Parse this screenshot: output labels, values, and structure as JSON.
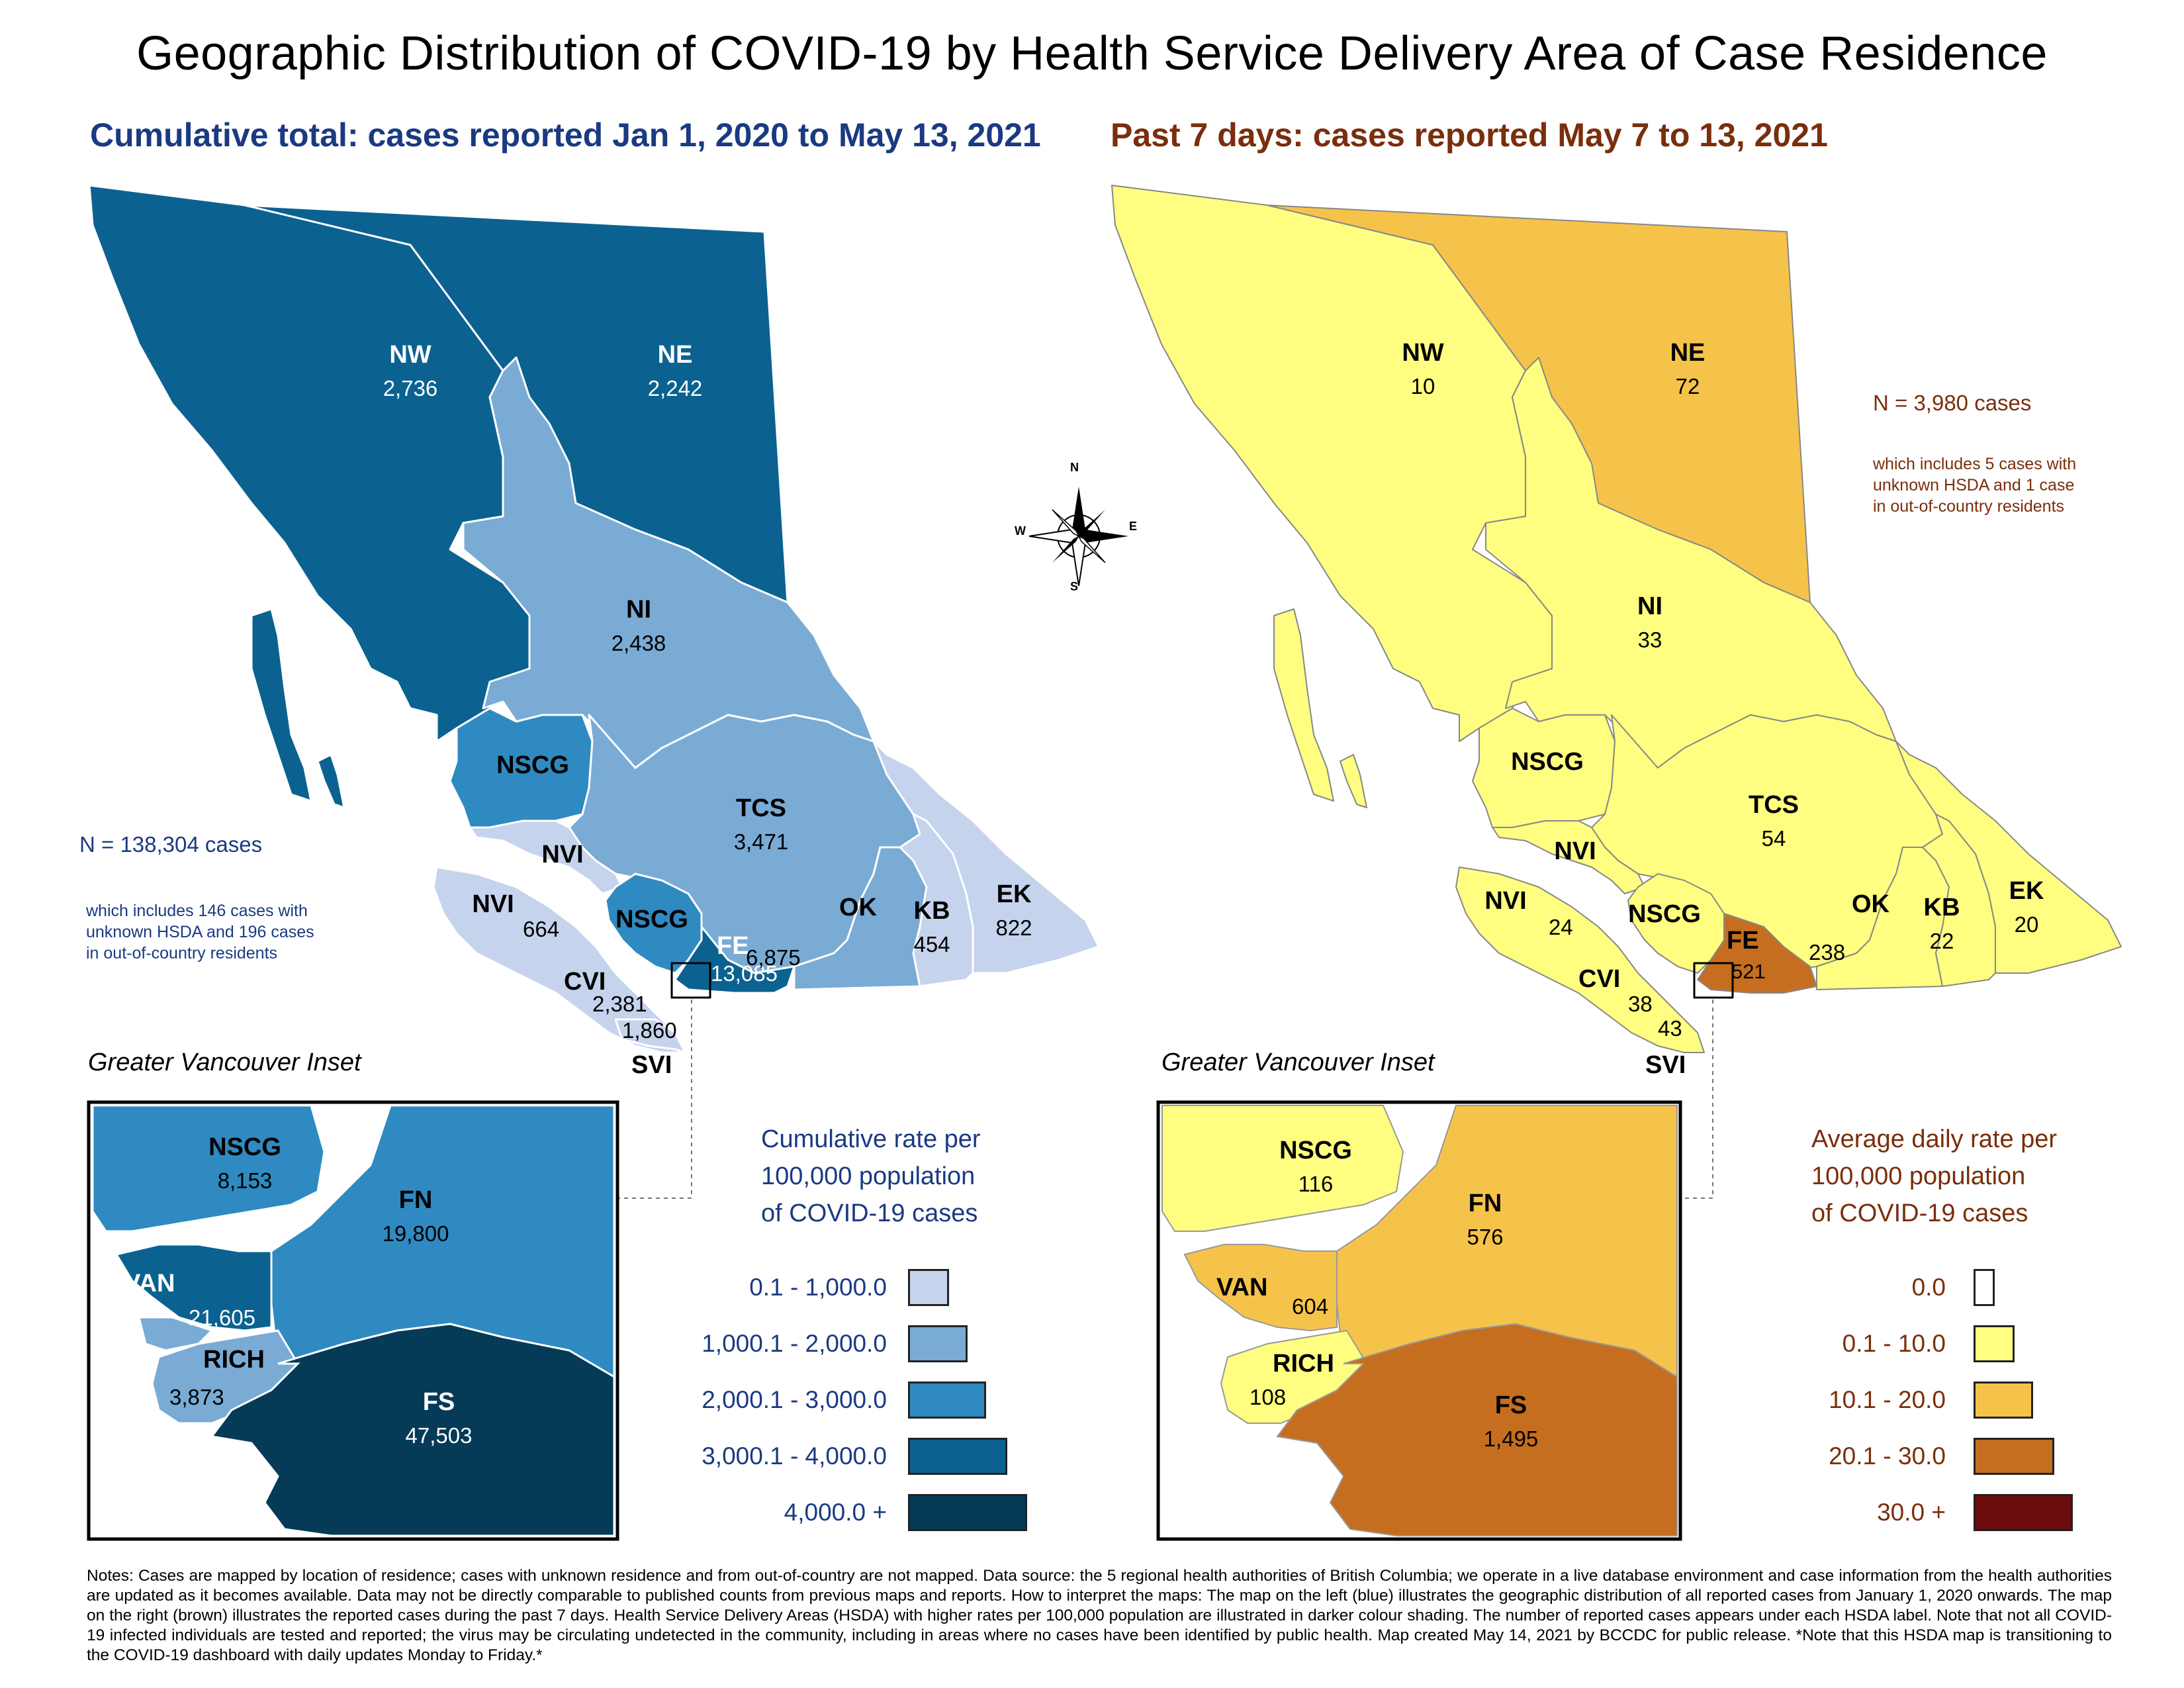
{
  "title": "Geographic Distribution of COVID-19 by Health Service Delivery Area of Case Residence",
  "left_panel": {
    "subtitle": "Cumulative total: cases reported Jan 1, 2020 to May 13, 2021",
    "total": "N = 138,304 cases",
    "note_lines": [
      "which includes 146 cases with",
      "unknown HSDA and 196 cases",
      "in out-of-country residents"
    ],
    "regions": {
      "NW": {
        "code": "NW",
        "value": "2,736"
      },
      "NE": {
        "code": "NE",
        "value": "2,242"
      },
      "NI": {
        "code": "NI",
        "value": "2,438"
      },
      "NSCG": {
        "code": "NSCG"
      },
      "TCS": {
        "code": "TCS",
        "value": "3,471"
      },
      "NVI_upper": {
        "code": "NVI"
      },
      "NVI_lower": {
        "code": "NVI",
        "value": "664"
      },
      "NSCG_south": {
        "code": "NSCG"
      },
      "FE": {
        "code": "FE",
        "value": "13,085"
      },
      "OK": {
        "code": "OK",
        "value": "6,875"
      },
      "KB": {
        "code": "KB",
        "value": "454"
      },
      "EK": {
        "code": "EK",
        "value": "822"
      },
      "CVI": {
        "code": "CVI",
        "value": "2,381"
      },
      "SVI": {
        "code": "SVI",
        "value": "1,860"
      }
    },
    "inset": {
      "title": "Greater Vancouver Inset",
      "NSCG": {
        "code": "NSCG",
        "value": "8,153"
      },
      "FN": {
        "code": "FN",
        "value": "19,800"
      },
      "VAN": {
        "code": "VAN",
        "value": "21,605"
      },
      "RICH": {
        "code": "RICH",
        "value": "3,873"
      },
      "FS": {
        "code": "FS",
        "value": "47,503"
      }
    },
    "legend": {
      "title_lines": [
        "Cumulative rate per",
        "100,000 population",
        "of COVID-19 cases"
      ],
      "items": [
        {
          "label": "0.1 - 1,000.0",
          "color": "#c5d3ec"
        },
        {
          "label": "1,000.1 - 2,000.0",
          "color": "#79abd5"
        },
        {
          "label": "2,000.1 - 3,000.0",
          "color": "#2f8ac1"
        },
        {
          "label": "3,000.1 - 4,000.0",
          "color": "#0b6290"
        },
        {
          "label": "4,000.0 +",
          "color": "#063b57"
        }
      ]
    }
  },
  "right_panel": {
    "subtitle": "Past 7 days: cases reported May 7 to 13, 2021",
    "total": "N = 3,980 cases",
    "note_lines": [
      "which includes 5 cases with",
      "unknown HSDA and 1 case",
      "in out-of-country residents"
    ],
    "regions": {
      "NW": {
        "code": "NW",
        "value": "10"
      },
      "NE": {
        "code": "NE",
        "value": "72"
      },
      "NI": {
        "code": "NI",
        "value": "33"
      },
      "NSCG": {
        "code": "NSCG"
      },
      "TCS": {
        "code": "TCS",
        "value": "54"
      },
      "NVI_upper": {
        "code": "NVI"
      },
      "NVI_lower": {
        "code": "NVI",
        "value": "24"
      },
      "NSCG_south": {
        "code": "NSCG"
      },
      "FE": {
        "code": "FE",
        "value": "521"
      },
      "OK": {
        "code": "OK",
        "value": "238"
      },
      "KB": {
        "code": "KB",
        "value": "22"
      },
      "EK": {
        "code": "EK",
        "value": "20"
      },
      "CVI": {
        "code": "CVI",
        "value": "38"
      },
      "SVI": {
        "code": "SVI",
        "value": "43"
      }
    },
    "inset": {
      "title": "Greater Vancouver Inset",
      "NSCG": {
        "code": "NSCG",
        "value": "116"
      },
      "FN": {
        "code": "FN",
        "value": "576"
      },
      "VAN": {
        "code": "VAN",
        "value": "604"
      },
      "RICH": {
        "code": "RICH",
        "value": "108"
      },
      "FS": {
        "code": "FS",
        "value": "1,495"
      }
    },
    "legend": {
      "title_lines": [
        "Average daily rate per",
        "100,000 population",
        "of COVID-19 cases"
      ],
      "items": [
        {
          "label": "0.0",
          "color": "#ffffff"
        },
        {
          "label": "0.1 - 10.0",
          "color": "#fffe80"
        },
        {
          "label": "10.1 - 20.0",
          "color": "#f6c34a"
        },
        {
          "label": "20.1 - 30.0",
          "color": "#c66e1f"
        },
        {
          "label": "30.0 +",
          "color": "#6b0b0b"
        }
      ]
    }
  },
  "compass": {
    "n": "N",
    "s": "S",
    "e": "E",
    "w": "W"
  },
  "notes": "Notes: Cases are mapped by location of residence; cases with unknown residence and from out-of-country are not mapped. Data source: the 5 regional health authorities of British Columbia; we operate in a live database environment and case information from the health authorities are updated as it becomes available. Data may not be directly comparable to published counts from previous maps and reports. How to interpret the maps: The map on the left (blue) illustrates the geographic distribution of all reported cases from January 1, 2020 onwards. The map on the right (brown) illustrates the reported cases during the past 7 days. Health Service Delivery Areas (HSDA) with higher rates per 100,000 population are illustrated in darker colour shading. The number of reported cases appears under each HSDA label. Note that not all COVID-19 infected individuals are tested and reported; the virus may be circulating undetected in the community, including in areas where no cases have been identified by public health. Map created May 14, 2021 by BCCDC for public release. *Note that this HSDA map is transitioning to the COVID-19 dashboard with daily updates Monday to Friday.*"
}
